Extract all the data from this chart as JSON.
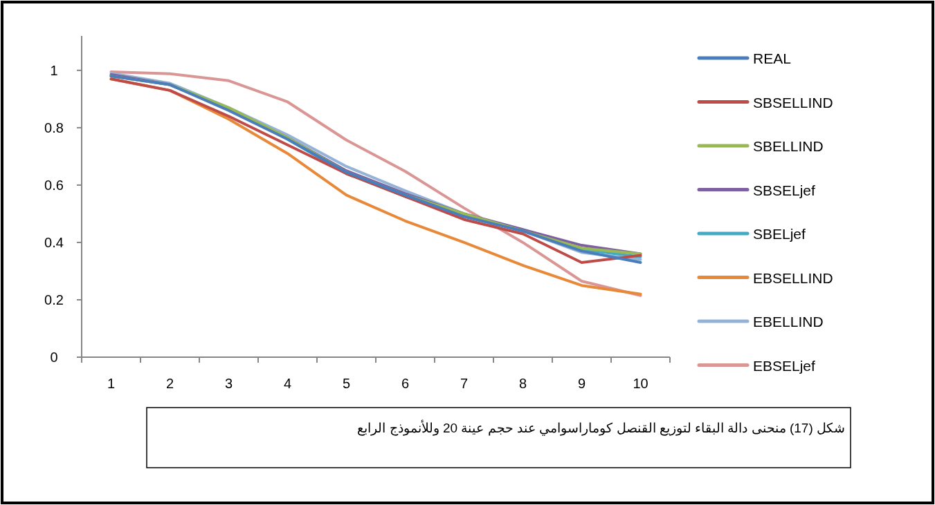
{
  "chart_data": {
    "type": "line",
    "categories": [
      "1",
      "2",
      "3",
      "4",
      "5",
      "6",
      "7",
      "8",
      "9",
      "10"
    ],
    "ylim": [
      0,
      1.12
    ],
    "yticks": [
      0,
      0.2,
      0.4,
      0.6,
      0.8,
      1
    ],
    "grid": false,
    "legend": "right",
    "marker": "none",
    "line_style": "solid",
    "annotations": [
      "شكل (17) منحنى دالة البقاء لتوزيع القنصل كوماراسوامي عند حجم عينة 20 وللأنموذج الرابع"
    ],
    "series": [
      {
        "name": "REAL",
        "color": "#4a7ebb",
        "values": [
          0.98,
          0.95,
          0.86,
          0.76,
          0.645,
          0.565,
          0.49,
          0.44,
          0.37,
          0.33
        ]
      },
      {
        "name": "SBSELLIND",
        "color": "#be4b48",
        "values": [
          0.97,
          0.93,
          0.84,
          0.74,
          0.64,
          0.56,
          0.48,
          0.43,
          0.33,
          0.355
        ]
      },
      {
        "name": "SBELLIND",
        "color": "#98b954",
        "values": [
          0.98,
          0.95,
          0.87,
          0.765,
          0.645,
          0.565,
          0.5,
          0.44,
          0.38,
          0.36
        ]
      },
      {
        "name": "SBSELjef",
        "color": "#7d60a0",
        "values": [
          0.985,
          0.95,
          0.865,
          0.765,
          0.65,
          0.57,
          0.5,
          0.445,
          0.39,
          0.36
        ]
      },
      {
        "name": "SBELjef",
        "color": "#46aac5",
        "values": [
          0.98,
          0.95,
          0.865,
          0.76,
          0.64,
          0.56,
          0.495,
          0.44,
          0.375,
          0.35
        ]
      },
      {
        "name": "EBSELLIND",
        "color": "#e8893a",
        "values": [
          0.97,
          0.93,
          0.83,
          0.71,
          0.565,
          0.475,
          0.4,
          0.32,
          0.25,
          0.22
        ]
      },
      {
        "name": "EBELLIND",
        "color": "#95b3d7",
        "values": [
          0.99,
          0.955,
          0.87,
          0.775,
          0.665,
          0.58,
          0.5,
          0.44,
          0.365,
          0.34
        ]
      },
      {
        "name": "EBSELjef",
        "color": "#d99694",
        "values": [
          0.995,
          0.988,
          0.964,
          0.89,
          0.757,
          0.648,
          0.52,
          0.4,
          0.265,
          0.215
        ]
      }
    ]
  }
}
